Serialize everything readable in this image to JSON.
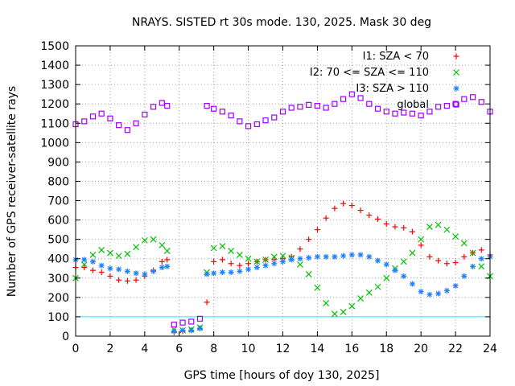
{
  "chart_data": {
    "type": "scatter",
    "title": "NRAYS. SISTED rt 30s mode. 130, 2025. Mask 30 deg",
    "xlabel": "GPS time [hours of doy 130, 2025]",
    "ylabel": "Number of GPS receiver-satellite rays",
    "xlim": [
      0,
      24
    ],
    "ylim": [
      0,
      1500
    ],
    "xticks": [
      0,
      2,
      4,
      6,
      8,
      10,
      12,
      14,
      16,
      18,
      20,
      22,
      24
    ],
    "yticks": [
      0,
      100,
      200,
      300,
      400,
      500,
      600,
      700,
      800,
      900,
      1000,
      1100,
      1200,
      1300,
      1400,
      1500
    ],
    "grid": true,
    "legend_position": "top-right",
    "reference_line": {
      "y": 100,
      "color": "#00ffff"
    },
    "series": [
      {
        "name": "I1: SZA < 70",
        "marker": "plus",
        "color": "#ff0000",
        "x": [
          0.0,
          0.5,
          1.0,
          1.5,
          2.0,
          2.5,
          3.0,
          3.5,
          4.0,
          4.5,
          5.0,
          5.3,
          5.7,
          6.2,
          6.7,
          7.2,
          7.6,
          8.0,
          8.5,
          9.0,
          9.5,
          10.0,
          10.5,
          11.0,
          11.5,
          12.0,
          12.5,
          13.0,
          13.5,
          14.0,
          14.5,
          15.0,
          15.5,
          16.0,
          16.5,
          17.0,
          17.5,
          18.0,
          18.5,
          19.0,
          19.5,
          20.0,
          20.5,
          21.0,
          21.5,
          22.0,
          22.5,
          23.0,
          23.5,
          24.0
        ],
        "y": [
          355,
          355,
          340,
          330,
          310,
          290,
          285,
          290,
          310,
          340,
          385,
          395,
          20,
          25,
          30,
          40,
          175,
          385,
          395,
          375,
          365,
          375,
          385,
          395,
          395,
          400,
          410,
          450,
          500,
          550,
          610,
          660,
          685,
          675,
          650,
          625,
          605,
          580,
          565,
          560,
          540,
          470,
          410,
          390,
          375,
          380,
          410,
          430,
          445,
          420
        ]
      },
      {
        "name": "I2: 70 <= SZA <= 110",
        "marker": "x",
        "color": "#00c000",
        "x": [
          0.0,
          0.5,
          1.0,
          1.5,
          2.0,
          2.5,
          3.0,
          3.5,
          4.0,
          4.5,
          5.0,
          5.3,
          5.7,
          6.2,
          6.7,
          7.2,
          7.6,
          8.0,
          8.5,
          9.0,
          9.5,
          10.0,
          10.5,
          11.0,
          11.5,
          12.0,
          12.5,
          13.0,
          13.5,
          14.0,
          14.5,
          15.0,
          15.5,
          16.0,
          16.5,
          17.0,
          17.5,
          18.0,
          18.5,
          19.0,
          19.5,
          20.0,
          20.5,
          21.0,
          21.5,
          22.0,
          22.5,
          23.0,
          23.5,
          24.0
        ],
        "y": [
          300,
          370,
          420,
          445,
          430,
          415,
          425,
          460,
          495,
          500,
          470,
          440,
          35,
          30,
          35,
          45,
          330,
          455,
          465,
          440,
          420,
          400,
          385,
          395,
          410,
          415,
          405,
          370,
          320,
          250,
          170,
          115,
          125,
          155,
          195,
          225,
          255,
          300,
          350,
          385,
          430,
          500,
          565,
          575,
          550,
          515,
          480,
          430,
          360,
          310
        ]
      },
      {
        "name": "I3: SZA > 110",
        "marker": "star",
        "color": "#2080ff",
        "x": [
          0.0,
          0.5,
          1.0,
          1.5,
          2.0,
          2.5,
          3.0,
          3.5,
          4.0,
          4.5,
          5.0,
          5.3,
          5.7,
          6.2,
          6.7,
          7.2,
          7.6,
          8.0,
          8.5,
          9.0,
          9.5,
          10.0,
          10.5,
          11.0,
          11.5,
          12.0,
          12.5,
          13.0,
          13.5,
          14.0,
          14.5,
          15.0,
          15.5,
          16.0,
          16.5,
          17.0,
          17.5,
          18.0,
          18.5,
          19.0,
          19.5,
          20.0,
          20.5,
          21.0,
          21.5,
          22.0,
          22.5,
          23.0,
          23.5,
          24.0
        ],
        "y": [
          395,
          395,
          385,
          365,
          350,
          345,
          335,
          325,
          320,
          335,
          355,
          360,
          25,
          30,
          30,
          40,
          320,
          325,
          330,
          330,
          335,
          345,
          355,
          365,
          375,
          385,
          395,
          400,
          405,
          410,
          410,
          410,
          415,
          420,
          420,
          410,
          390,
          370,
          340,
          310,
          270,
          230,
          215,
          220,
          235,
          260,
          310,
          360,
          400,
          410
        ]
      },
      {
        "name": "global",
        "marker": "square",
        "color": "#a000ff",
        "x": [
          0.0,
          0.5,
          1.0,
          1.5,
          2.0,
          2.5,
          3.0,
          3.5,
          4.0,
          4.5,
          5.0,
          5.3,
          5.7,
          6.2,
          6.7,
          7.2,
          7.6,
          8.0,
          8.5,
          9.0,
          9.5,
          10.0,
          10.5,
          11.0,
          11.5,
          12.0,
          12.5,
          13.0,
          13.5,
          14.0,
          14.5,
          15.0,
          15.5,
          16.0,
          16.5,
          17.0,
          17.5,
          18.0,
          18.5,
          19.0,
          19.5,
          20.0,
          20.5,
          21.0,
          21.5,
          22.0,
          22.5,
          23.0,
          23.5,
          24.0
        ],
        "y": [
          1095,
          1110,
          1135,
          1150,
          1125,
          1090,
          1065,
          1100,
          1145,
          1185,
          1205,
          1190,
          60,
          70,
          75,
          90,
          1190,
          1175,
          1160,
          1140,
          1110,
          1085,
          1095,
          1115,
          1130,
          1160,
          1180,
          1185,
          1195,
          1190,
          1180,
          1200,
          1225,
          1250,
          1230,
          1200,
          1175,
          1160,
          1150,
          1155,
          1150,
          1140,
          1160,
          1185,
          1190,
          1200,
          1225,
          1235,
          1210,
          1160
        ]
      }
    ]
  }
}
